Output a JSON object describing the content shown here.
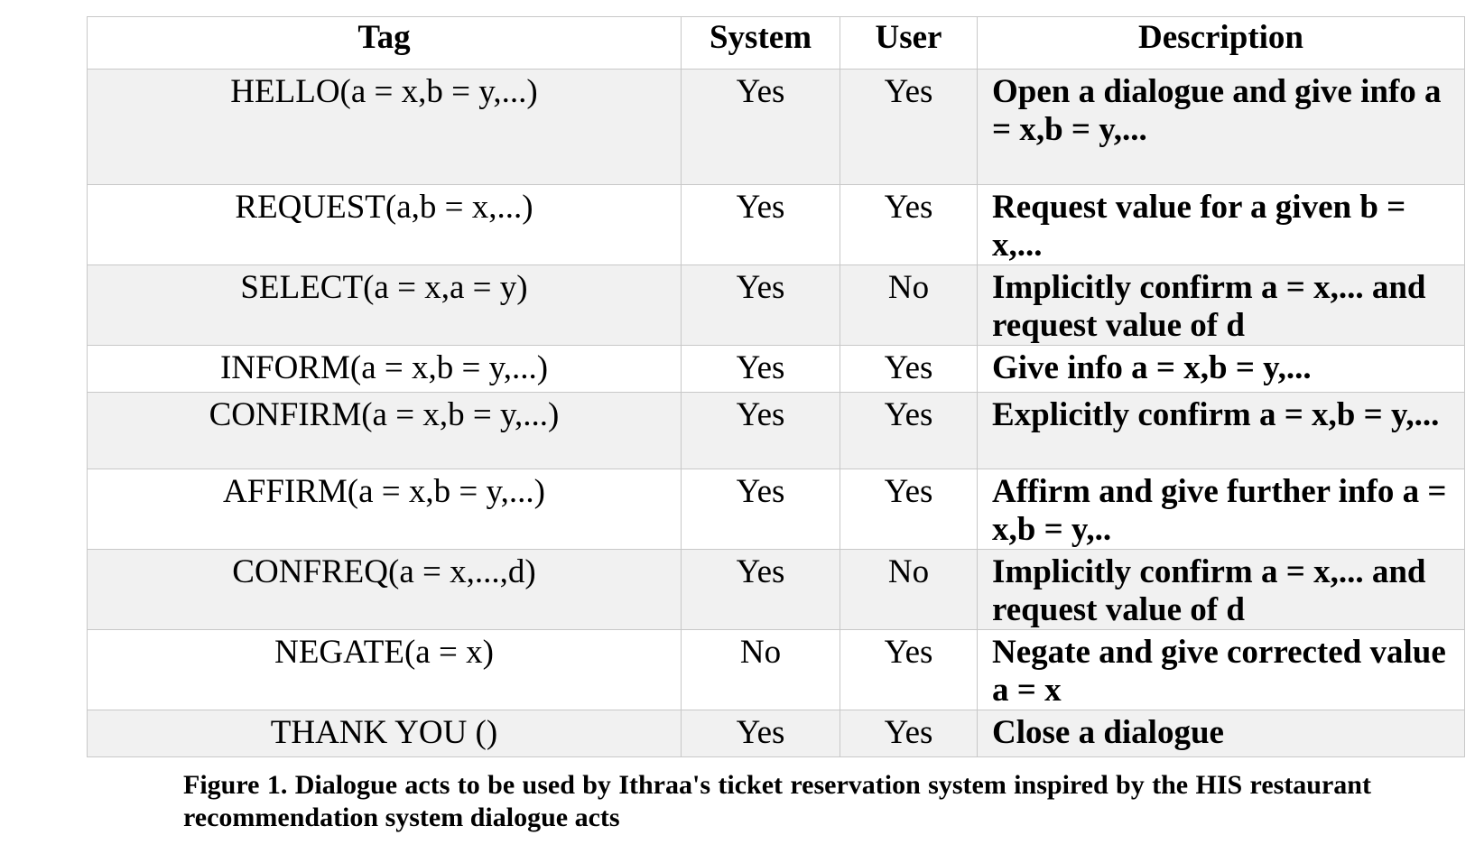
{
  "table": {
    "headers": {
      "tag": "Tag",
      "system": "System",
      "user": "User",
      "description": "Description"
    },
    "rows": [
      {
        "tag": "HELLO(a = x,b = y,...)",
        "system": "Yes",
        "user": "Yes",
        "description": "Open a dialogue and give info a = x,b = y,..."
      },
      {
        "tag": "REQUEST(a,b = x,...)",
        "system": "Yes",
        "user": "Yes",
        "description": "Request value for a given b = x,..."
      },
      {
        "tag": "SELECT(a = x,a = y)",
        "system": "Yes",
        "user": "No",
        "description": "Implicitly confirm a = x,... and request value of d"
      },
      {
        "tag": "INFORM(a = x,b = y,...)",
        "system": "Yes",
        "user": "Yes",
        "description": "Give info a = x,b = y,..."
      },
      {
        "tag": "CONFIRM(a = x,b = y,...)",
        "system": "Yes",
        "user": "Yes",
        "description": "Explicitly confirm a = x,b = y,..."
      },
      {
        "tag": "AFFIRM(a = x,b = y,...)",
        "system": "Yes",
        "user": "Yes",
        "description": "Affirm and give further info a = x,b = y,.."
      },
      {
        "tag": "CONFREQ(a = x,...,d)",
        "system": "Yes",
        "user": "No",
        "description": "Implicitly confirm a = x,... and request value of d"
      },
      {
        "tag": "NEGATE(a = x)",
        "system": "No",
        "user": "Yes",
        "description": "Negate and give corrected value a = x"
      },
      {
        "tag": "THANK YOU ()",
        "system": "Yes",
        "user": "Yes",
        "description": "Close a dialogue"
      }
    ]
  },
  "caption": "Figure 1. Dialogue acts to be used by Ithraa's ticket reservation system inspired by the HIS restaurant recommendation system dialogue acts"
}
